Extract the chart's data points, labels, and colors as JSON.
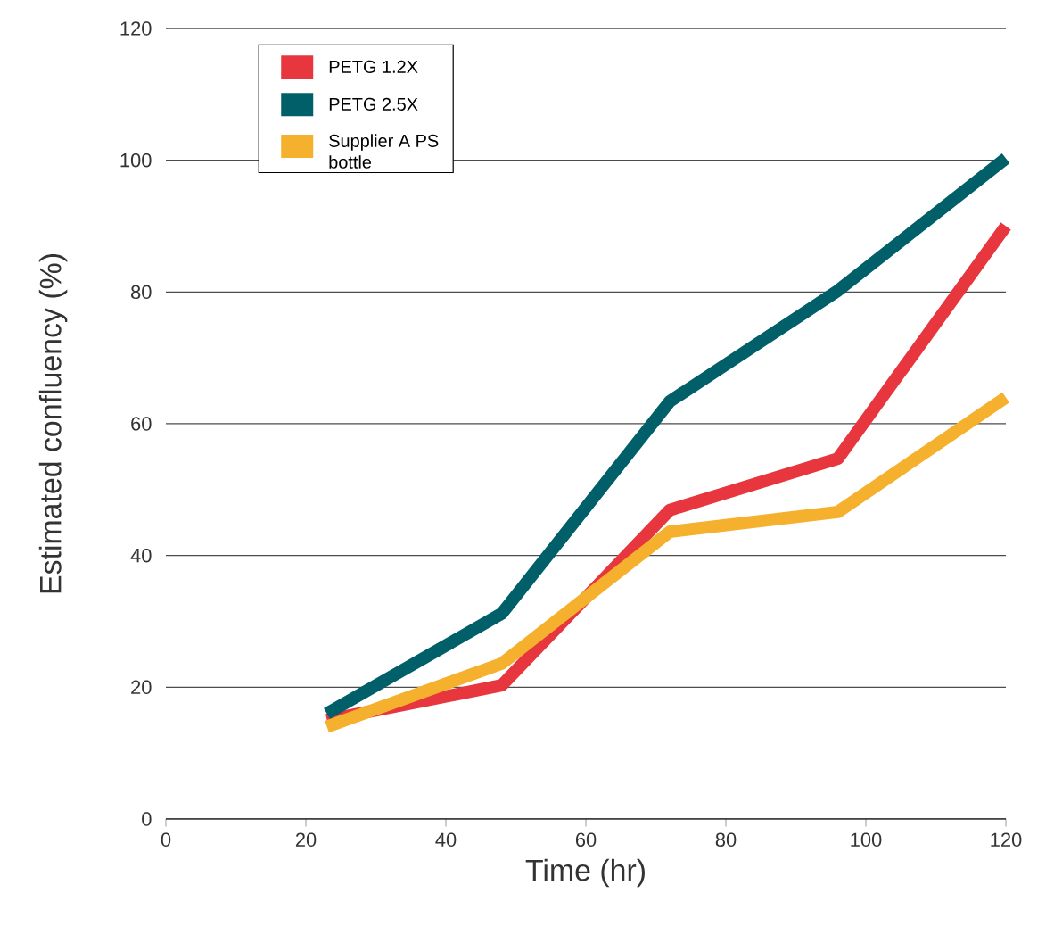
{
  "chart_data": {
    "type": "line",
    "xlabel": "Time (hr)",
    "ylabel": "Estimated confluency (%)",
    "x": [
      23,
      48,
      72,
      96,
      120
    ],
    "series": [
      {
        "name": "PETG 1.2X",
        "color": "#e8363f",
        "values": [
          15,
          20.3,
          46.9,
          54.7,
          90
        ]
      },
      {
        "name": "PETG 2.5X",
        "color": "#005f69",
        "values": [
          16,
          31.2,
          63.4,
          80.2,
          100.3
        ]
      },
      {
        "name": "Supplier A PS bottle",
        "color": "#f5b12e",
        "values": [
          14,
          23.6,
          43.6,
          46.6,
          64
        ]
      }
    ],
    "xlim": [
      0,
      120
    ],
    "ylim": [
      0,
      120
    ],
    "xticks": [
      0,
      20,
      40,
      60,
      80,
      100,
      120
    ],
    "yticks": [
      0,
      20,
      40,
      60,
      80,
      100,
      120
    ],
    "grid": "y",
    "legend": "top left",
    "line_style": "solid",
    "marker": "none"
  }
}
